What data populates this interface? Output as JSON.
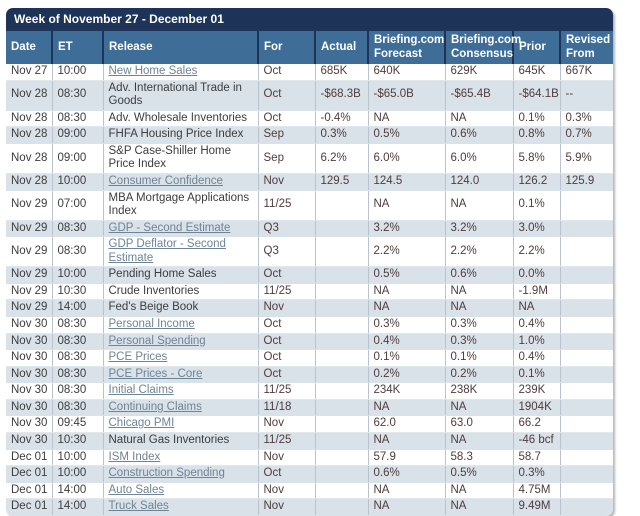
{
  "table": {
    "title": "Week of November 27 - December 01",
    "columns": [
      "Date",
      "ET",
      "Release",
      "For",
      "Actual",
      "Briefing.com Forecast",
      "Briefing.com Consensus",
      "Prior",
      "Revised From"
    ],
    "rows": [
      {
        "date": "Nov 27",
        "et": "10:00",
        "release": "New Home Sales",
        "linked": true,
        "for": "Oct",
        "actual": "685K",
        "forecast": "640K",
        "consensus": "629K",
        "prior": "645K",
        "revised": "667K"
      },
      {
        "date": "Nov 28",
        "et": "08:30",
        "release": "Adv. International Trade in Goods",
        "linked": false,
        "for": "Oct",
        "actual": "-$68.3B",
        "forecast": "-$65.0B",
        "consensus": "-$65.4B",
        "prior": "-$64.1B",
        "revised": "--"
      },
      {
        "date": "Nov 28",
        "et": "08:30",
        "release": "Adv. Wholesale Inventories",
        "linked": false,
        "for": "Oct",
        "actual": "-0.4%",
        "forecast": "NA",
        "consensus": "NA",
        "prior": "0.1%",
        "revised": "0.3%"
      },
      {
        "date": "Nov 28",
        "et": "09:00",
        "release": "FHFA Housing Price Index",
        "linked": false,
        "for": "Sep",
        "actual": "0.3%",
        "forecast": "0.5%",
        "consensus": "0.6%",
        "prior": "0.8%",
        "revised": "0.7%"
      },
      {
        "date": "Nov 28",
        "et": "09:00",
        "release": "S&P Case-Shiller Home Price Index",
        "linked": false,
        "for": "Sep",
        "actual": "6.2%",
        "forecast": "6.0%",
        "consensus": "6.0%",
        "prior": "5.8%",
        "revised": "5.9%"
      },
      {
        "date": "Nov 28",
        "et": "10:00",
        "release": "Consumer Confidence",
        "linked": true,
        "for": "Nov",
        "actual": "129.5",
        "forecast": "124.5",
        "consensus": "124.0",
        "prior": "126.2",
        "revised": "125.9"
      },
      {
        "date": "Nov 29",
        "et": "07:00",
        "release": "MBA Mortgage Applications Index",
        "linked": false,
        "for": "11/25",
        "actual": "",
        "forecast": "NA",
        "consensus": "NA",
        "prior": "0.1%",
        "revised": ""
      },
      {
        "date": "Nov 29",
        "et": "08:30",
        "release": "GDP - Second Estimate",
        "linked": true,
        "for": "Q3",
        "actual": "",
        "forecast": "3.2%",
        "consensus": "3.2%",
        "prior": "3.0%",
        "revised": ""
      },
      {
        "date": "Nov 29",
        "et": "08:30",
        "release": "GDP Deflator - Second Estimate",
        "linked": true,
        "for": "Q3",
        "actual": "",
        "forecast": "2.2%",
        "consensus": "2.2%",
        "prior": "2.2%",
        "revised": ""
      },
      {
        "date": "Nov 29",
        "et": "10:00",
        "release": "Pending Home Sales",
        "linked": false,
        "for": "Oct",
        "actual": "",
        "forecast": "0.5%",
        "consensus": "0.6%",
        "prior": "0.0%",
        "revised": ""
      },
      {
        "date": "Nov 29",
        "et": "10:30",
        "release": "Crude Inventories",
        "linked": false,
        "for": "11/25",
        "actual": "",
        "forecast": "NA",
        "consensus": "NA",
        "prior": "-1.9M",
        "revised": ""
      },
      {
        "date": "Nov 29",
        "et": "14:00",
        "release": "Fed's Beige Book",
        "linked": false,
        "for": "Nov",
        "actual": "",
        "forecast": "NA",
        "consensus": "NA",
        "prior": "NA",
        "revised": ""
      },
      {
        "date": "Nov 30",
        "et": "08:30",
        "release": "Personal Income",
        "linked": true,
        "for": "Oct",
        "actual": "",
        "forecast": "0.3%",
        "consensus": "0.3%",
        "prior": "0.4%",
        "revised": ""
      },
      {
        "date": "Nov 30",
        "et": "08:30",
        "release": "Personal Spending",
        "linked": true,
        "for": "Oct",
        "actual": "",
        "forecast": "0.4%",
        "consensus": "0.3%",
        "prior": "1.0%",
        "revised": ""
      },
      {
        "date": "Nov 30",
        "et": "08:30",
        "release": "PCE Prices",
        "linked": true,
        "for": "Oct",
        "actual": "",
        "forecast": "0.1%",
        "consensus": "0.1%",
        "prior": "0.4%",
        "revised": ""
      },
      {
        "date": "Nov 30",
        "et": "08:30",
        "release": "PCE Prices - Core",
        "linked": true,
        "for": "Oct",
        "actual": "",
        "forecast": "0.2%",
        "consensus": "0.2%",
        "prior": "0.1%",
        "revised": ""
      },
      {
        "date": "Nov 30",
        "et": "08:30",
        "release": "Initial Claims",
        "linked": true,
        "for": "11/25",
        "actual": "",
        "forecast": "234K",
        "consensus": "238K",
        "prior": "239K",
        "revised": ""
      },
      {
        "date": "Nov 30",
        "et": "08:30",
        "release": "Continuing Claims",
        "linked": true,
        "for": "11/18",
        "actual": "",
        "forecast": "NA",
        "consensus": "NA",
        "prior": "1904K",
        "revised": ""
      },
      {
        "date": "Nov 30",
        "et": "09:45",
        "release": "Chicago PMI",
        "linked": true,
        "for": "Nov",
        "actual": "",
        "forecast": "62.0",
        "consensus": "63.0",
        "prior": "66.2",
        "revised": ""
      },
      {
        "date": "Nov 30",
        "et": "10:30",
        "release": "Natural Gas Inventories",
        "linked": false,
        "for": "11/25",
        "actual": "",
        "forecast": "NA",
        "consensus": "NA",
        "prior": "-46 bcf",
        "revised": ""
      },
      {
        "date": "Dec 01",
        "et": "10:00",
        "release": "ISM Index",
        "linked": true,
        "for": "Nov",
        "actual": "",
        "forecast": "57.9",
        "consensus": "58.3",
        "prior": "58.7",
        "revised": ""
      },
      {
        "date": "Dec 01",
        "et": "10:00",
        "release": "Construction Spending",
        "linked": true,
        "for": "Oct",
        "actual": "",
        "forecast": "0.6%",
        "consensus": "0.5%",
        "prior": "0.3%",
        "revised": ""
      },
      {
        "date": "Dec 01",
        "et": "14:00",
        "release": "Auto Sales",
        "linked": true,
        "for": "Nov",
        "actual": "",
        "forecast": "NA",
        "consensus": "NA",
        "prior": "4.75M",
        "revised": ""
      },
      {
        "date": "Dec 01",
        "et": "14:00",
        "release": "Truck Sales",
        "linked": true,
        "for": "Nov",
        "actual": "",
        "forecast": "NA",
        "consensus": "NA",
        "prior": "9.49M",
        "revised": ""
      }
    ]
  },
  "colors": {
    "title_bar": "#1d3357",
    "header_bar": "#3e6d97",
    "stripe_row": "#d9e1e9",
    "link": "#6e8494",
    "value_text": "#503c3c"
  }
}
